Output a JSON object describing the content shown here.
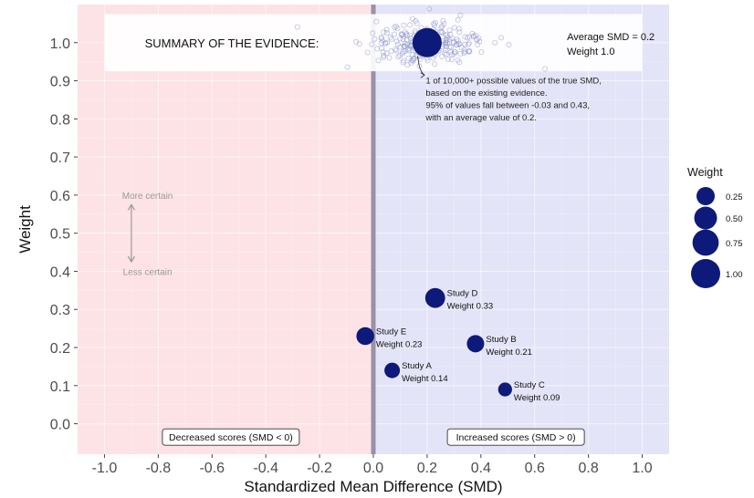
{
  "chart_data": {
    "type": "scatter",
    "title": "",
    "xlabel": "Standardized Mean Difference (SMD)",
    "ylabel": "Weight",
    "xlim": [
      -1.1,
      1.1
    ],
    "ylim": [
      -0.08,
      1.1
    ],
    "x_ticks": [
      "-1.0",
      "-0.8",
      "-0.6",
      "-0.4",
      "-0.2",
      "0.0",
      "0.2",
      "0.4",
      "0.6",
      "0.8",
      "1.0"
    ],
    "y_ticks": [
      "0.0",
      "0.1",
      "0.2",
      "0.3",
      "0.4",
      "0.5",
      "0.6",
      "0.7",
      "0.8",
      "0.9",
      "1.0"
    ],
    "grid": true,
    "colors": {
      "negative_region": "#fde3e5",
      "positive_region": "#e4e4f8",
      "point": "#0d1a7a",
      "zero_line": "#9a90a8",
      "summary_band": "#ffffff"
    },
    "studies": [
      {
        "name": "Study A",
        "weight_label": "Weight 0.14",
        "x": 0.07,
        "y": 0.14,
        "weight": 0.14
      },
      {
        "name": "Study B",
        "weight_label": "Weight 0.21",
        "x": 0.38,
        "y": 0.21,
        "weight": 0.21
      },
      {
        "name": "Study C",
        "weight_label": "Weight 0.09",
        "x": 0.49,
        "y": 0.09,
        "weight": 0.09
      },
      {
        "name": "Study D",
        "weight_label": "Weight 0.33",
        "x": 0.23,
        "y": 0.33,
        "weight": 0.33
      },
      {
        "name": "Study E",
        "weight_label": "Weight 0.23",
        "x": -0.03,
        "y": 0.23,
        "weight": 0.23
      }
    ],
    "summary": {
      "label": "SUMMARY OF THE EVIDENCE:",
      "avg_label": "Average SMD = 0.2",
      "weight_label": "Weight 1.0",
      "x": 0.2,
      "y": 1.0,
      "weight": 1.0,
      "annotation": [
        "1 of 10,000+ possible values of the true SMD,",
        "based on the existing evidence.",
        "95% of values fall between -0.03 and 0.43,",
        "with an average value of 0.2."
      ]
    },
    "certainty": {
      "top_label": "More certain",
      "bottom_label": "Less certain"
    },
    "region_labels": {
      "negative": "Decreased scores (SMD < 0)",
      "positive": "Increased scores (SMD > 0)"
    },
    "legend": {
      "title": "Weight",
      "placement": "right",
      "items": [
        {
          "label": "0.25",
          "weight": 0.25
        },
        {
          "label": "0.50",
          "weight": 0.5
        },
        {
          "label": "0.75",
          "weight": 0.75
        },
        {
          "label": "1.00",
          "weight": 1.0
        }
      ]
    }
  }
}
